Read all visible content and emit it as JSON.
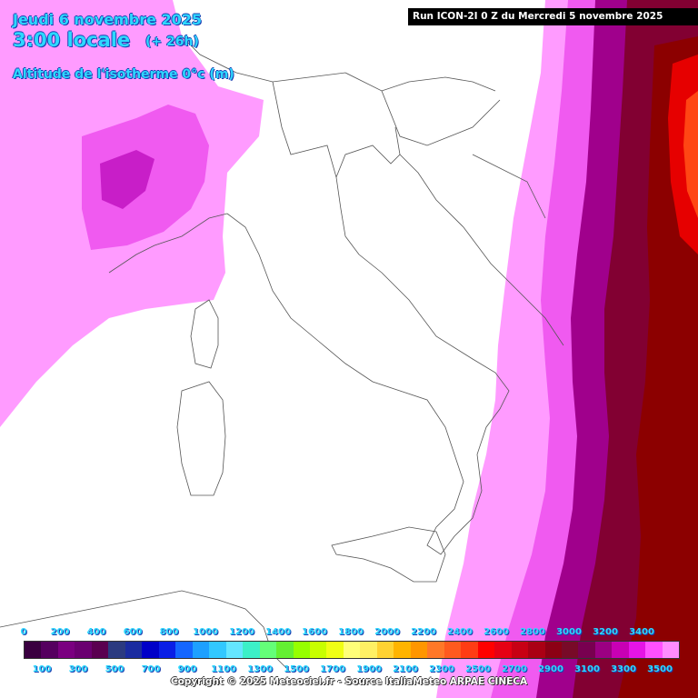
{
  "header": {
    "date": "Jeudi 6 novembre 2025",
    "time": "3:00 locale",
    "lead_time": "(+ 26h)",
    "field": "Altitude de l'isotherme 0°c (m)",
    "run": "Run ICON-2I 0 Z du Mercredi 5 novembre 2025"
  },
  "legend": {
    "top_labels": [
      "0",
      "200",
      "400",
      "600",
      "800",
      "1000",
      "1200",
      "1400",
      "1600",
      "1800",
      "2000",
      "2200",
      "2400",
      "2600",
      "2800",
      "3000",
      "3200",
      "3400"
    ],
    "bottom_labels": [
      "100",
      "300",
      "500",
      "700",
      "900",
      "1100",
      "1300",
      "1500",
      "1700",
      "1900",
      "2100",
      "2300",
      "2500",
      "2700",
      "2900",
      "3100",
      "3300",
      "3500"
    ],
    "colors": [
      "#3a0040",
      "#55005f",
      "#7a0080",
      "#6a0070",
      "#5a0050",
      "#2b3a80",
      "#1a2ba0",
      "#0000c8",
      "#0a1ee6",
      "#1466ff",
      "#1ea0ff",
      "#32c8ff",
      "#64e6ff",
      "#3cf0c8",
      "#64ff78",
      "#64f032",
      "#96ff00",
      "#c8ff00",
      "#f0ff14",
      "#ffff78",
      "#fff064",
      "#ffd232",
      "#ffb400",
      "#ff9600",
      "#ff7828",
      "#ff5a1e",
      "#ff3c14",
      "#ff0000",
      "#e60014",
      "#c80014",
      "#aa0014",
      "#8c0014",
      "#780a28",
      "#780050",
      "#9b0082",
      "#c800b4",
      "#e614e6",
      "#ff50ff",
      "#ff8cff"
    ]
  },
  "copyright": "Copyright © 2025 Meteociel.fr - Source ItaliaMeteo ARPAE CINECA",
  "colors": {
    "title": "#2dd8ff",
    "light_magenta": "#ff9bff",
    "magenta": "#f05af0",
    "dark_magenta": "#a0008c",
    "maroon": "#820032",
    "dark_red": "#8c0000",
    "red": "#e60000",
    "orange_red": "#ff4614"
  }
}
